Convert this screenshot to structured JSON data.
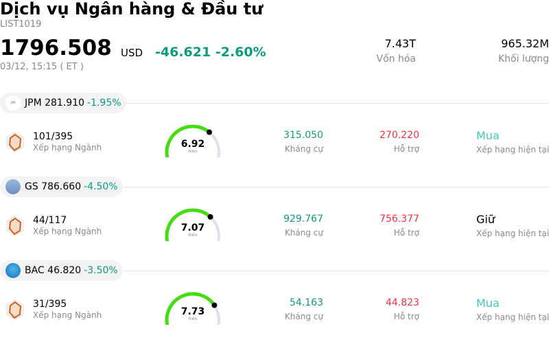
{
  "header": {
    "title": "Dịch vụ Ngân hàng & Đầu tư",
    "code": "LIST1019",
    "price": "1796.508",
    "currency": "USD",
    "change": "-46.621",
    "change_pct": "-2.60%",
    "time": "03/12, 15:15 ( ET )",
    "market_cap": {
      "value": "7.43T",
      "label": "Vốn hóa"
    },
    "volume": {
      "value": "965.32M",
      "label": "Khối lượng"
    }
  },
  "colors": {
    "positive": "#0e9a7f",
    "negative": "#f0313f",
    "buy": "#3fc9b8",
    "gauge": "#44dd11",
    "gauge_track": "#e0e0ea"
  },
  "stocks": [
    {
      "ticker": "JPM",
      "price": "281.910",
      "pct": "-1.95%",
      "rank": "101/395",
      "rank_label": "Xếp hạng Ngành",
      "score": "6.92",
      "score_value": 6.92,
      "score_label": "Điểm",
      "resistance": "315.050",
      "resistance_label": "Kháng cự",
      "support": "270.220",
      "support_label": "Hỗ trợ",
      "rating": "Mua",
      "rating_label": "Xếp hạng hiện tại",
      "logo_icon": "jpmorgan-logo"
    },
    {
      "ticker": "GS",
      "price": "786.660",
      "pct": "-4.50%",
      "rank": "44/117",
      "rank_label": "Xếp hạng Ngành",
      "score": "7.07",
      "score_value": 7.07,
      "score_label": "Điểm",
      "resistance": "929.767",
      "resistance_label": "Kháng cự",
      "support": "756.377",
      "support_label": "Hỗ trợ",
      "rating": "Giữ",
      "rating_label": "Xếp hạng hiện tại",
      "logo_icon": "goldman-sachs-logo"
    },
    {
      "ticker": "BAC",
      "price": "46.820",
      "pct": "-3.50%",
      "rank": "31/395",
      "rank_label": "Xếp hạng Ngành",
      "score": "7.73",
      "score_value": 7.73,
      "score_label": "Điểm",
      "resistance": "54.163",
      "resistance_label": "Kháng cự",
      "support": "44.823",
      "support_label": "Hỗ trợ",
      "rating": "Mua",
      "rating_label": "Xếp hạng hiện tại",
      "logo_icon": "bank-of-america-logo"
    }
  ]
}
